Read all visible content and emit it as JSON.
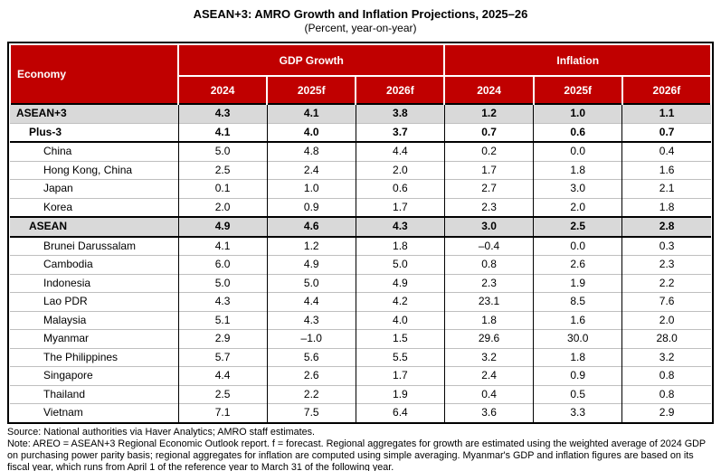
{
  "chart_data": {
    "type": "table",
    "title": "ASEAN+3: AMRO Growth and Inflation Projections, 2025–26",
    "subtitle": "(Percent, year-on-year)",
    "columns": {
      "economy": "Economy",
      "gdp_growth": "GDP Growth",
      "inflation": "Inflation",
      "year_headers": [
        "2024",
        "2025f",
        "2026f",
        "2024",
        "2025f",
        "2026f"
      ]
    },
    "rows": [
      {
        "label": "ASEAN+3",
        "level": 0,
        "kind": "aggregate",
        "rule_above": "black",
        "values": [
          "4.3",
          "4.1",
          "3.8",
          "1.2",
          "1.0",
          "1.1"
        ]
      },
      {
        "label": "Plus-3",
        "level": 1,
        "kind": "subaggregate",
        "rule_below": "black",
        "values": [
          "4.1",
          "4.0",
          "3.7",
          "0.7",
          "0.6",
          "0.7"
        ]
      },
      {
        "label": "China",
        "level": 2,
        "kind": "country",
        "values": [
          "5.0",
          "4.8",
          "4.4",
          "0.2",
          "0.0",
          "0.4"
        ]
      },
      {
        "label": "Hong Kong, China",
        "level": 2,
        "kind": "country",
        "values": [
          "2.5",
          "2.4",
          "2.0",
          "1.7",
          "1.8",
          "1.6"
        ]
      },
      {
        "label": "Japan",
        "level": 2,
        "kind": "country",
        "values": [
          "0.1",
          "1.0",
          "0.6",
          "2.7",
          "3.0",
          "2.1"
        ]
      },
      {
        "label": "Korea",
        "level": 2,
        "kind": "country",
        "values": [
          "2.0",
          "0.9",
          "1.7",
          "2.3",
          "2.0",
          "1.8"
        ]
      },
      {
        "label": "ASEAN",
        "level": 1,
        "kind": "aggregate",
        "rule_above": "black",
        "rule_below": "black",
        "values": [
          "4.9",
          "4.6",
          "4.3",
          "3.0",
          "2.5",
          "2.8"
        ]
      },
      {
        "label": "Brunei Darussalam",
        "level": 2,
        "kind": "country",
        "values": [
          "4.1",
          "1.2",
          "1.8",
          "–0.4",
          "0.0",
          "0.3"
        ]
      },
      {
        "label": "Cambodia",
        "level": 2,
        "kind": "country",
        "values": [
          "6.0",
          "4.9",
          "5.0",
          "0.8",
          "2.6",
          "2.3"
        ]
      },
      {
        "label": "Indonesia",
        "level": 2,
        "kind": "country",
        "values": [
          "5.0",
          "5.0",
          "4.9",
          "2.3",
          "1.9",
          "2.2"
        ]
      },
      {
        "label": "Lao PDR",
        "level": 2,
        "kind": "country",
        "values": [
          "4.3",
          "4.4",
          "4.2",
          "23.1",
          "8.5",
          "7.6"
        ]
      },
      {
        "label": "Malaysia",
        "level": 2,
        "kind": "country",
        "values": [
          "5.1",
          "4.3",
          "4.0",
          "1.8",
          "1.6",
          "2.0"
        ]
      },
      {
        "label": "Myanmar",
        "level": 2,
        "kind": "country",
        "values": [
          "2.9",
          "–1.0",
          "1.5",
          "29.6",
          "30.0",
          "28.0"
        ]
      },
      {
        "label": "The Philippines",
        "level": 2,
        "kind": "country",
        "values": [
          "5.7",
          "5.6",
          "5.5",
          "3.2",
          "1.8",
          "3.2"
        ]
      },
      {
        "label": "Singapore",
        "level": 2,
        "kind": "country",
        "values": [
          "4.4",
          "2.6",
          "1.7",
          "2.4",
          "0.9",
          "0.8"
        ]
      },
      {
        "label": "Thailand",
        "level": 2,
        "kind": "country",
        "values": [
          "2.5",
          "2.2",
          "1.9",
          "0.4",
          "0.5",
          "0.8"
        ]
      },
      {
        "label": "Vietnam",
        "level": 2,
        "kind": "country",
        "values": [
          "7.1",
          "7.5",
          "6.4",
          "3.6",
          "3.3",
          "2.9"
        ]
      }
    ],
    "footer": {
      "source": "Source: National authorities via Haver Analytics; AMRO staff estimates.",
      "note": "Note: AREO = ASEAN+3 Regional Economic Outlook report. f = forecast. Regional aggregates for growth are estimated using the weighted average of 2024 GDP on purchasing power parity basis; regional aggregates for inflation are computed using simple averaging. Myanmar's GDP and inflation figures are based on its fiscal year, which runs from April 1 of the reference year to March 31 of the following year."
    },
    "layout_hints": {
      "grid": "on",
      "header_rows": 2,
      "shaded_rows": [
        "ASEAN+3",
        "ASEAN"
      ]
    },
    "colors": {
      "header_bg": "#C00000",
      "header_text": "#FFFFFF",
      "aggregate_row_bg": "#D9D9D9",
      "grid_line": "#BFBFBF",
      "frame": "#000000"
    }
  }
}
